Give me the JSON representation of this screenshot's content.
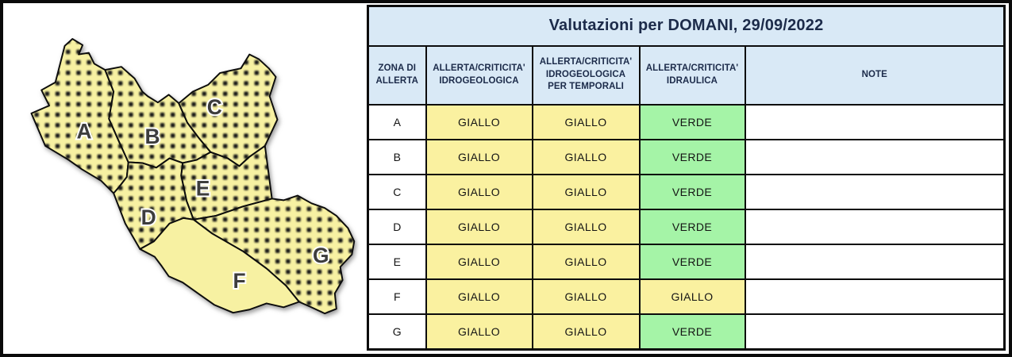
{
  "title": "Valutazioni per DOMANI, 29/09/2022",
  "table": {
    "columns": [
      "ZONA DI ALLERTA",
      "ALLERTA/CRITICITA' IDROGEOLOGICA",
      "ALLERTA/CRITICITA' IDROGEOLOGICA PER TEMPORALI",
      "ALLERTA/CRITICITA' IDRAULICA",
      "NOTE"
    ],
    "rows": [
      {
        "zone": "A",
        "idrogeologica": "GIALLO",
        "temporali": "GIALLO",
        "idraulica": "VERDE",
        "note": ""
      },
      {
        "zone": "B",
        "idrogeologica": "GIALLO",
        "temporali": "GIALLO",
        "idraulica": "VERDE",
        "note": ""
      },
      {
        "zone": "C",
        "idrogeologica": "GIALLO",
        "temporali": "GIALLO",
        "idraulica": "VERDE",
        "note": ""
      },
      {
        "zone": "D",
        "idrogeologica": "GIALLO",
        "temporali": "GIALLO",
        "idraulica": "VERDE",
        "note": ""
      },
      {
        "zone": "E",
        "idrogeologica": "GIALLO",
        "temporali": "GIALLO",
        "idraulica": "VERDE",
        "note": ""
      },
      {
        "zone": "F",
        "idrogeologica": "GIALLO",
        "temporali": "GIALLO",
        "idraulica": "GIALLO",
        "note": ""
      },
      {
        "zone": "G",
        "idrogeologica": "GIALLO",
        "temporali": "GIALLO",
        "idraulica": "VERDE",
        "note": ""
      }
    ]
  },
  "value_colors": {
    "GIALLO": "#FAF1A0",
    "VERDE": "#A5F4A7"
  },
  "colors": {
    "header_bg": "#D9E9F6",
    "header_text": "#1C2B4A",
    "border": "#0C0C0C",
    "map_fill": "#F7F1A2",
    "map_dot": "#161616",
    "map_label": "#3D3D3D"
  },
  "map": {
    "zones": [
      {
        "label": "A",
        "pattern": "dotted"
      },
      {
        "label": "B",
        "pattern": "dotted"
      },
      {
        "label": "C",
        "pattern": "dotted"
      },
      {
        "label": "D",
        "pattern": "dotted"
      },
      {
        "label": "E",
        "pattern": "dotted"
      },
      {
        "label": "F",
        "pattern": "plain"
      },
      {
        "label": "G",
        "pattern": "dotted"
      }
    ]
  }
}
